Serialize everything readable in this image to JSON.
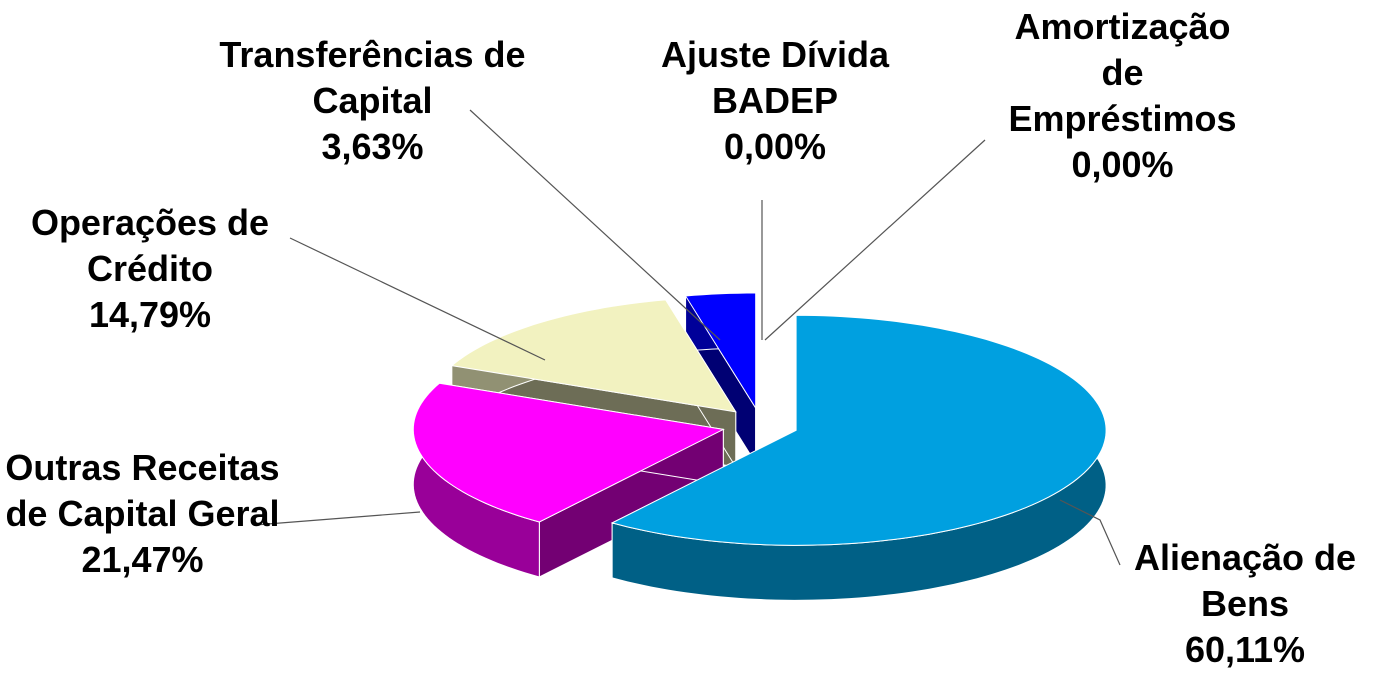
{
  "chart_data": {
    "type": "pie3d",
    "categories": [
      "Alienação de Bens",
      "Outras Receitas de Capital Geral",
      "Operações de Crédito",
      "Transferências de Capital",
      "Ajuste Dívida BADEP",
      "Amortização de Empréstimos"
    ],
    "values": [
      60.11,
      21.47,
      14.79,
      3.63,
      0.0,
      0.0
    ],
    "value_labels": [
      "60,11%",
      "21,47%",
      "14,79%",
      "3,63%",
      "0,00%",
      "0,00%"
    ],
    "colors": [
      "#00a0e0",
      "#ff00ff",
      "#f2f2c0",
      "#0000ff",
      "#ffffff",
      "#ffffff"
    ]
  }
}
